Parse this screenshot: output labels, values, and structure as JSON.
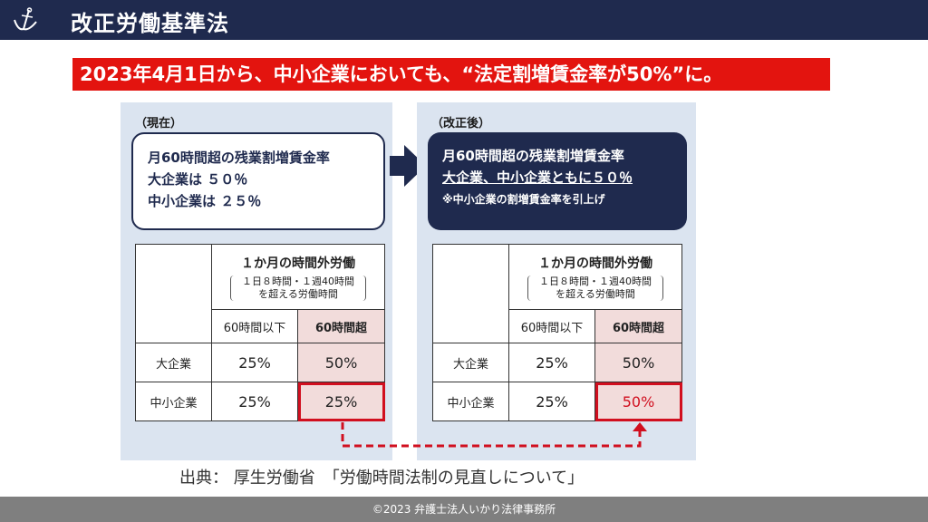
{
  "header": {
    "title": "改正労働基準法",
    "logo_icon": "anchor-icon"
  },
  "banner": {
    "text": "2023年4月1日から、中小企業においても、“法定割増賃金率が50%”に。"
  },
  "current": {
    "label": "（現在）",
    "lines": [
      "月60時間超の残業割増賃金率",
      "大企業は ５０％",
      "中小企業は ２５％"
    ],
    "table": {
      "header_title": "１か月の時間外労働",
      "header_sub_1": "１日８時間・１週40時間",
      "header_sub_2": "を超える労働時間",
      "col_a": "60時間以下",
      "col_b": "60時間超",
      "rows": [
        {
          "label": "大企業",
          "a": "25%",
          "b": "50%"
        },
        {
          "label": "中小企業",
          "a": "25%",
          "b": "25%"
        }
      ]
    }
  },
  "revised": {
    "label": "（改正後）",
    "lines": [
      "月60時間超の残業割増賃金率",
      "大企業、中小企業ともに５０％",
      "※中小企業の割増賃金率を引上げ"
    ],
    "table": {
      "header_title": "１か月の時間外労働",
      "header_sub_1": "１日８時間・１週40時間",
      "header_sub_2": "を超える労働時間",
      "col_a": "60時間以下",
      "col_b": "60時間超",
      "rows": [
        {
          "label": "大企業",
          "a": "25%",
          "b": "50%"
        },
        {
          "label": "中小企業",
          "a": "25%",
          "b": "50%"
        }
      ]
    }
  },
  "source": "出典： 厚生労働省　「労働時間法制の見直しについて」",
  "footer": "©2023 弁護士法人いかり法律事務所",
  "colors": {
    "navy": "#1f2a4e",
    "banner_red": "#e3140f",
    "panel_blue": "#dbe4f0",
    "pink_cell": "#f2dcdb",
    "highlight_red": "#d10f1f",
    "footer_gray": "#7f7f7f"
  }
}
